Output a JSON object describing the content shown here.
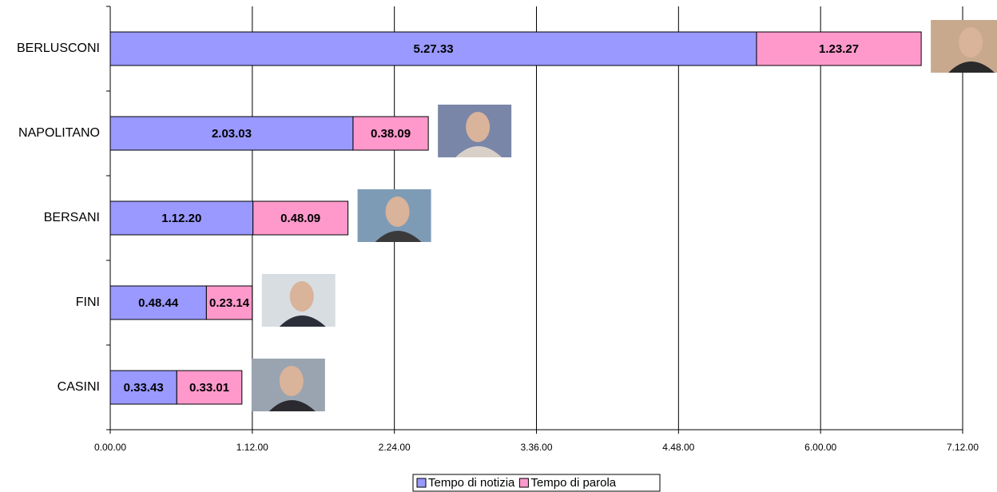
{
  "chart_data": {
    "type": "stacked-bar-horizontal",
    "categories": [
      "BERLUSCONI",
      "NAPOLITANO",
      "BERSANI",
      "FINI",
      "CASINI"
    ],
    "series": [
      {
        "name": "Tempo di notizia",
        "color": "#9999ff",
        "values": [
          19653,
          7383,
          4340,
          2924,
          2023
        ],
        "value_labels": [
          "5.27.33",
          "2.03.03",
          "1.12.20",
          "0.48.44",
          "0.33.43"
        ]
      },
      {
        "name": "Tempo di parola",
        "color": "#ff99cc",
        "values": [
          5007,
          2289,
          2889,
          1394,
          1981
        ],
        "value_labels": [
          "1.23.27",
          "0.38.09",
          "0.48.09",
          "0.23.14",
          "0.33.01"
        ]
      }
    ],
    "xlim": [
      0,
      25920
    ],
    "xticks": [
      {
        "value": 0,
        "label": "0.00.00"
      },
      {
        "value": 4320,
        "label": "1.12.00"
      },
      {
        "value": 8640,
        "label": "2.24.00"
      },
      {
        "value": 12960,
        "label": "3.36.00"
      },
      {
        "value": 17280,
        "label": "4.48.00"
      },
      {
        "value": 21600,
        "label": "6.00.00"
      },
      {
        "value": 25920,
        "label": "7.12.00"
      }
    ],
    "grid": true
  }
}
